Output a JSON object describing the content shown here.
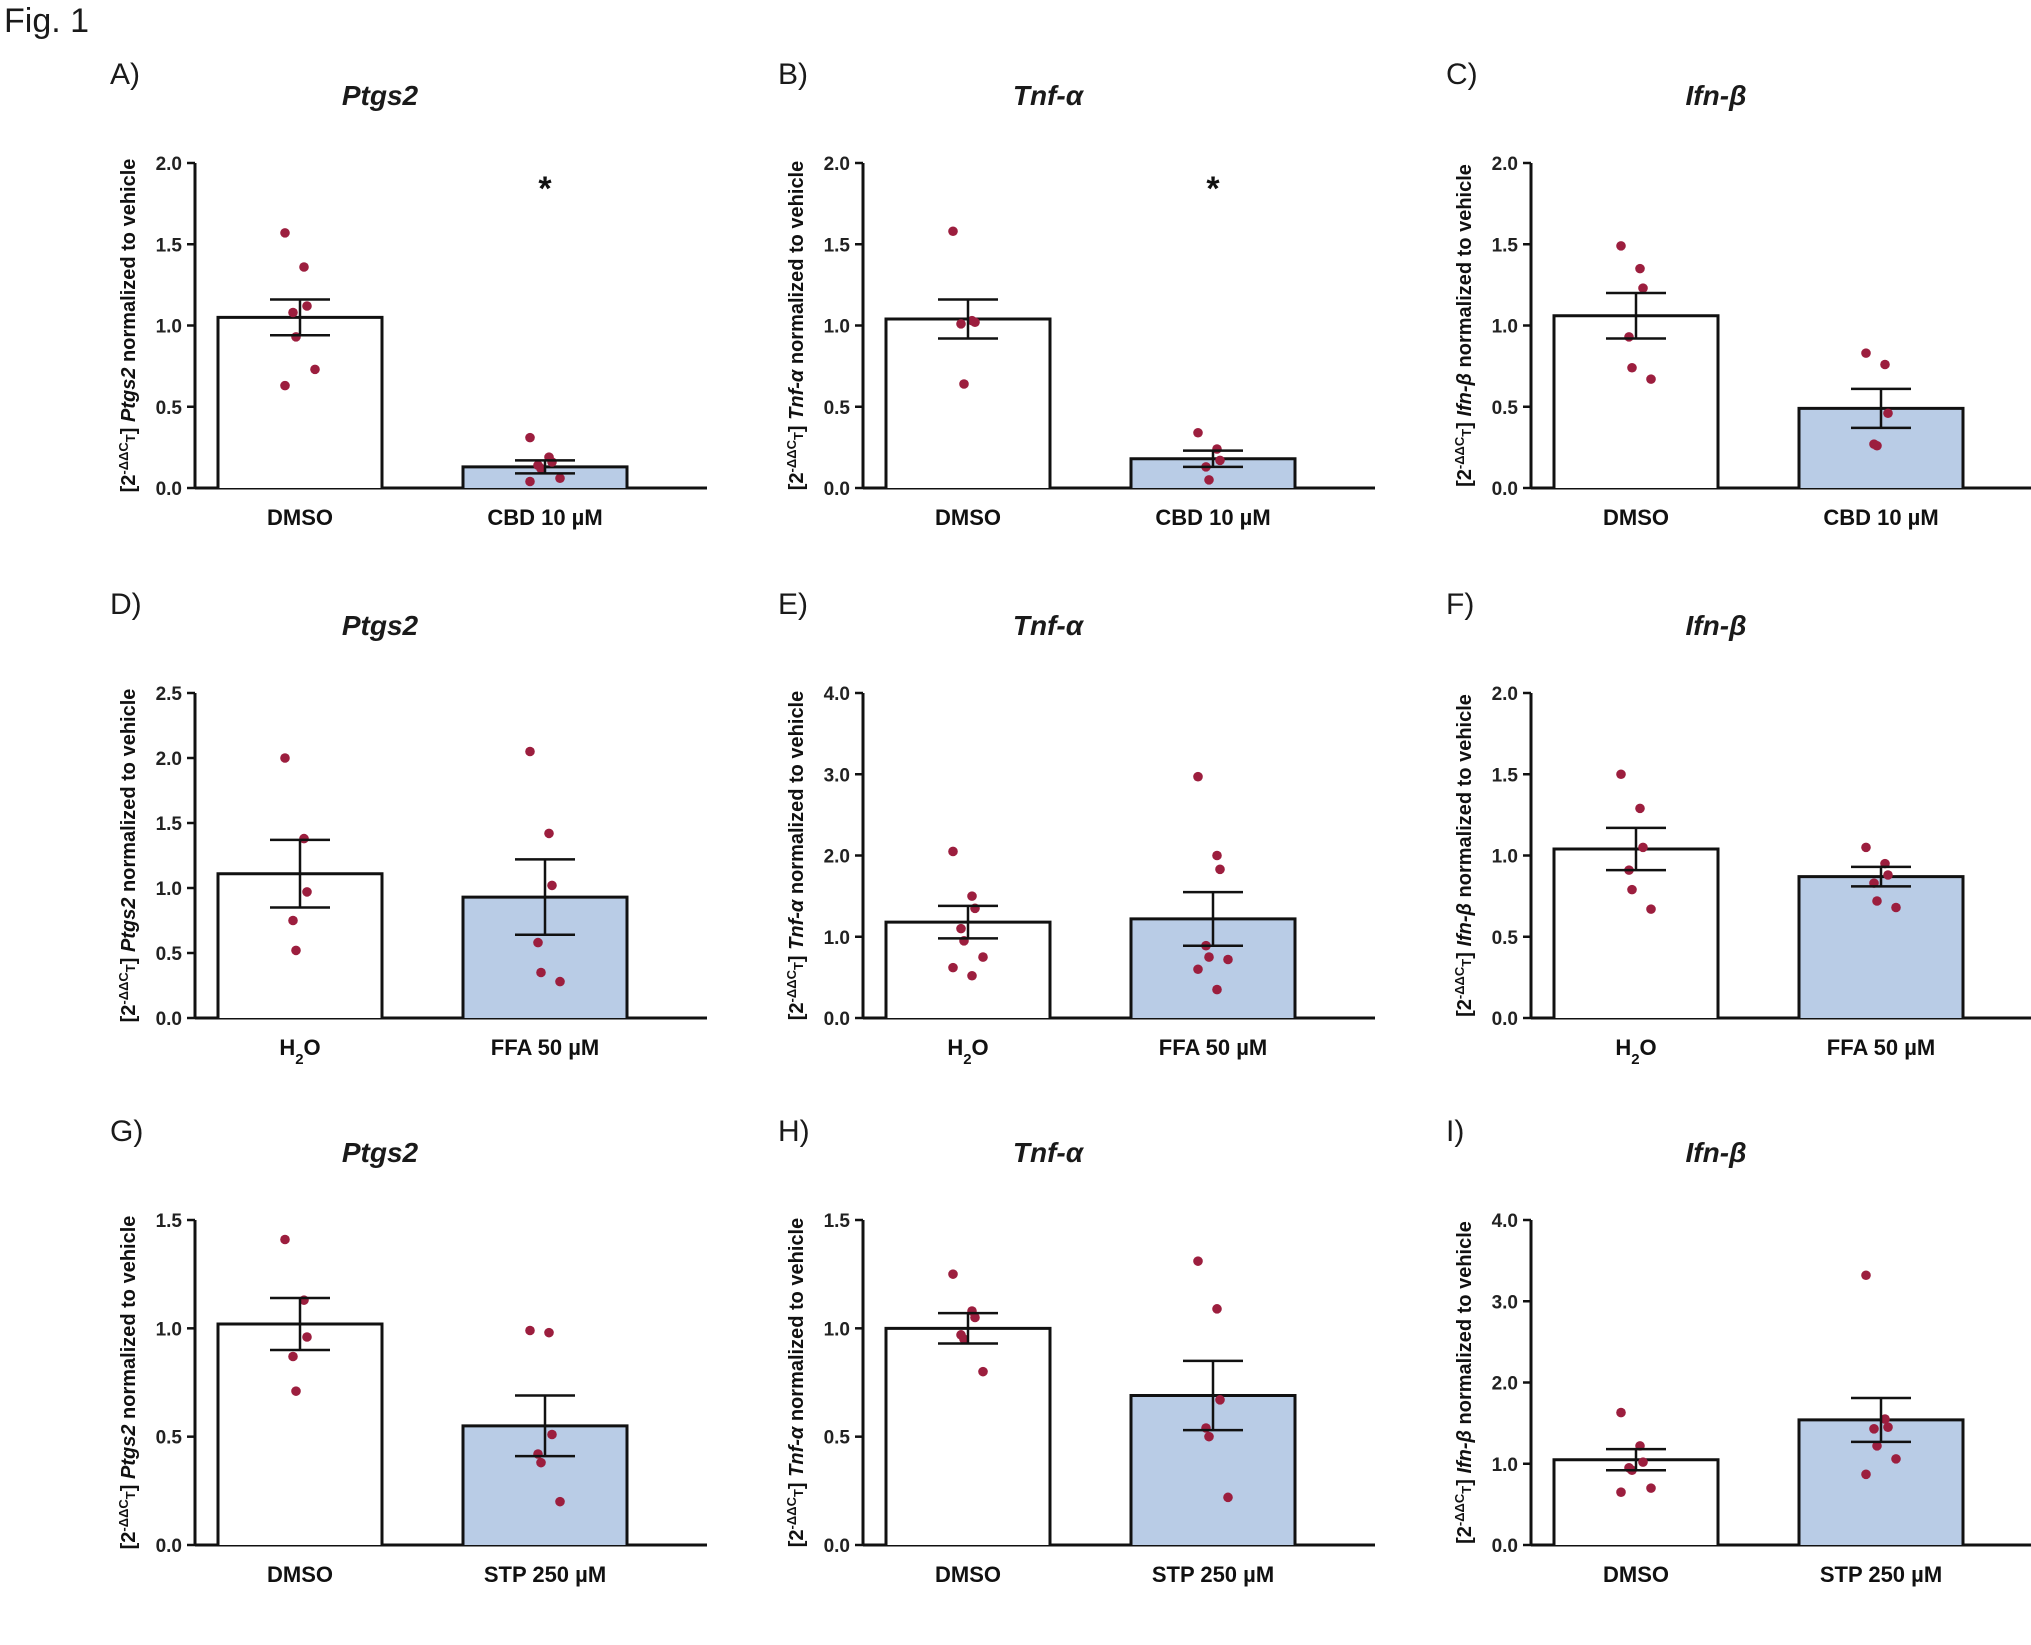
{
  "figure": {
    "title": "Fig. 1"
  },
  "colors": {
    "bar_control": "#ffffff",
    "bar_treatment": "#b9cce6",
    "point": "#9c1e3e",
    "axis": "#111111"
  },
  "chart_data": [
    {
      "id": "A",
      "label": "A)",
      "type": "bar",
      "title": "Ptgs2",
      "gene": "Ptgs2",
      "ylabel": "[2^-ΔΔCT] Ptgs2 normalized to vehicle",
      "ylim": [
        0,
        2.0
      ],
      "yticks": [
        "0.0",
        "0.5",
        "1.0",
        "1.5",
        "2.0"
      ],
      "categories": [
        "DMSO",
        "CBD 10 µM"
      ],
      "means": [
        1.05,
        0.13
      ],
      "sem": [
        0.11,
        0.04
      ],
      "points": [
        [
          1.57,
          1.36,
          1.12,
          1.08,
          0.93,
          0.73,
          0.63
        ],
        [
          0.31,
          0.19,
          0.16,
          0.14,
          0.12,
          0.06,
          0.04
        ]
      ],
      "significance": [
        "",
        "*"
      ]
    },
    {
      "id": "B",
      "label": "B)",
      "type": "bar",
      "title": "Tnf-α",
      "gene": "Tnf-α",
      "ylabel": "[2^-ΔΔCT] Tnf-α normalized to vehicle",
      "ylim": [
        0,
        2.0
      ],
      "yticks": [
        "0.0",
        "0.5",
        "1.0",
        "1.5",
        "2.0"
      ],
      "categories": [
        "DMSO",
        "CBD 10 µM"
      ],
      "means": [
        1.04,
        0.18
      ],
      "sem": [
        0.12,
        0.05
      ],
      "points": [
        [
          1.58,
          1.03,
          1.02,
          1.01,
          0.64
        ],
        [
          0.34,
          0.24,
          0.17,
          0.13,
          0.05
        ]
      ],
      "significance": [
        "",
        "*"
      ]
    },
    {
      "id": "C",
      "label": "C)",
      "type": "bar",
      "title": "Ifn-β",
      "gene": "Ifn-β",
      "ylabel": "[2^-ΔΔCT] Ifn-β normalized to vehicle",
      "ylim": [
        0,
        2.0
      ],
      "yticks": [
        "0.0",
        "0.5",
        "1.0",
        "1.5",
        "2.0"
      ],
      "categories": [
        "DMSO",
        "CBD 10 µM"
      ],
      "means": [
        1.06,
        0.49
      ],
      "sem": [
        0.14,
        0.12
      ],
      "points": [
        [
          1.49,
          1.35,
          1.23,
          0.93,
          0.74,
          0.67
        ],
        [
          0.83,
          0.76,
          0.46,
          0.27,
          0.26
        ]
      ],
      "significance": [
        "",
        ""
      ]
    },
    {
      "id": "D",
      "label": "D)",
      "type": "bar",
      "title": "Ptgs2",
      "gene": "Ptgs2",
      "ylabel": "[2^-ΔΔCT] Ptgs2 normalized to vehicle",
      "ylim": [
        0,
        2.5
      ],
      "yticks": [
        "0.0",
        "0.5",
        "1.0",
        "1.5",
        "2.0",
        "2.5"
      ],
      "categories": [
        "H2O",
        "FFA 50 µM"
      ],
      "means": [
        1.11,
        0.93
      ],
      "sem": [
        0.26,
        0.29
      ],
      "points": [
        [
          2.0,
          1.38,
          0.97,
          0.75,
          0.52
        ],
        [
          2.05,
          1.42,
          1.02,
          0.58,
          0.35,
          0.28
        ]
      ],
      "significance": [
        "",
        ""
      ]
    },
    {
      "id": "E",
      "label": "E)",
      "type": "bar",
      "title": "Tnf-α",
      "gene": "Tnf-α",
      "ylabel": "[2^-ΔΔCT] Tnf-α normalized to vehicle",
      "ylim": [
        0,
        4.0
      ],
      "yticks": [
        "0.0",
        "1.0",
        "2.0",
        "3.0",
        "4.0"
      ],
      "categories": [
        "H2O",
        "FFA 50 µM"
      ],
      "means": [
        1.18,
        1.22
      ],
      "sem": [
        0.2,
        0.33
      ],
      "points": [
        [
          2.05,
          1.5,
          1.35,
          1.1,
          0.95,
          0.75,
          0.62,
          0.52
        ],
        [
          2.97,
          2.0,
          1.83,
          0.89,
          0.75,
          0.72,
          0.6,
          0.35
        ]
      ],
      "significance": [
        "",
        ""
      ]
    },
    {
      "id": "F",
      "label": "F)",
      "type": "bar",
      "title": "Ifn-β",
      "gene": "Ifn-β",
      "ylabel": "[2^-ΔΔCT] Ifn-β normalized to vehicle",
      "ylim": [
        0,
        2.0
      ],
      "yticks": [
        "0.0",
        "0.5",
        "1.0",
        "1.5",
        "2.0"
      ],
      "categories": [
        "H2O",
        "FFA 50 µM"
      ],
      "means": [
        1.04,
        0.87
      ],
      "sem": [
        0.13,
        0.06
      ],
      "points": [
        [
          1.5,
          1.29,
          1.05,
          0.91,
          0.79,
          0.67
        ],
        [
          1.05,
          0.95,
          0.88,
          0.83,
          0.72,
          0.68
        ]
      ],
      "significance": [
        "",
        ""
      ]
    },
    {
      "id": "G",
      "label": "G)",
      "type": "bar",
      "title": "Ptgs2",
      "gene": "Ptgs2",
      "ylabel": "[2^-ΔΔCT] Ptgs2 normalized to vehicle",
      "ylim": [
        0,
        1.5
      ],
      "yticks": [
        "0.0",
        "0.5",
        "1.0",
        "1.5"
      ],
      "categories": [
        "DMSO",
        "STP 250 µM"
      ],
      "means": [
        1.02,
        0.55
      ],
      "sem": [
        0.12,
        0.14
      ],
      "points": [
        [
          1.41,
          1.13,
          0.96,
          0.87,
          0.71
        ],
        [
          0.99,
          0.98,
          0.51,
          0.42,
          0.38,
          0.2
        ]
      ],
      "significance": [
        "",
        ""
      ]
    },
    {
      "id": "H",
      "label": "H)",
      "type": "bar",
      "title": "Tnf-α",
      "gene": "Tnf-α",
      "ylabel": "[2^-ΔΔCT] Tnf-α normalized to vehicle",
      "ylim": [
        0,
        1.5
      ],
      "yticks": [
        "0.0",
        "0.5",
        "1.0",
        "1.5"
      ],
      "categories": [
        "DMSO",
        "STP 250 µM"
      ],
      "means": [
        1.0,
        0.69
      ],
      "sem": [
        0.07,
        0.16
      ],
      "points": [
        [
          1.25,
          1.08,
          1.05,
          0.97,
          0.95,
          0.8
        ],
        [
          1.31,
          1.09,
          0.67,
          0.54,
          0.5,
          0.22
        ]
      ],
      "significance": [
        "",
        ""
      ]
    },
    {
      "id": "I",
      "label": "I)",
      "type": "bar",
      "title": "Ifn-β",
      "gene": "Ifn-β",
      "ylabel": "[2^-ΔΔCT] Ifn-β normalized to vehicle",
      "ylim": [
        0,
        4.0
      ],
      "yticks": [
        "0.0",
        "1.0",
        "2.0",
        "3.0",
        "4.0"
      ],
      "categories": [
        "DMSO",
        "STP 250 µM"
      ],
      "means": [
        1.05,
        1.54
      ],
      "sem": [
        0.13,
        0.27
      ],
      "points": [
        [
          1.63,
          1.22,
          1.02,
          0.95,
          0.92,
          0.7,
          0.65
        ],
        [
          3.32,
          1.55,
          1.45,
          1.43,
          1.22,
          1.06,
          0.87
        ]
      ],
      "significance": [
        "",
        ""
      ]
    }
  ]
}
